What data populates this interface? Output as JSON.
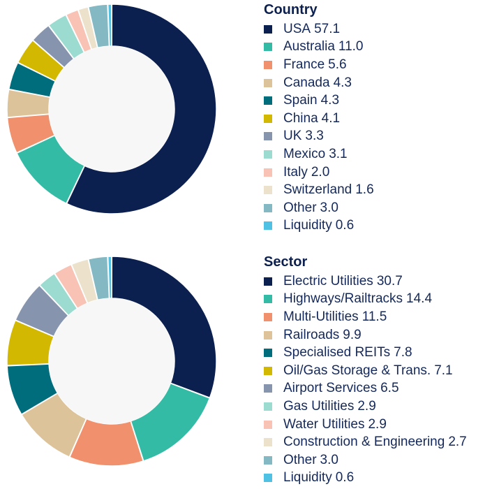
{
  "chart_data": [
    {
      "type": "pie",
      "title": "Country",
      "hole": true,
      "legend_position": "right",
      "slices": [
        {
          "label": "USA",
          "value": 57.1,
          "display": "57.1",
          "color": "#0c2050"
        },
        {
          "label": "Australia",
          "value": 11.0,
          "display": "11.0",
          "color": "#33bba5"
        },
        {
          "label": "France",
          "value": 5.6,
          "display": "5.6",
          "color": "#f0906c"
        },
        {
          "label": "Canada",
          "value": 4.3,
          "display": "4.3",
          "color": "#dcc39a"
        },
        {
          "label": "Spain",
          "value": 4.3,
          "display": "4.3",
          "color": "#006d7d"
        },
        {
          "label": "China",
          "value": 4.1,
          "display": "4.1",
          "color": "#d2b800"
        },
        {
          "label": "UK",
          "value": 3.3,
          "display": "3.3",
          "color": "#8794ad"
        },
        {
          "label": "Mexico",
          "value": 3.1,
          "display": "3.1",
          "color": "#9cdbd0"
        },
        {
          "label": "Italy",
          "value": 2.0,
          "display": "2.0",
          "color": "#f8c3b4"
        },
        {
          "label": "Switzerland",
          "value": 1.6,
          "display": "1.6",
          "color": "#ece1cb"
        },
        {
          "label": "Other",
          "value": 3.0,
          "display": "3.0",
          "color": "#84b9c3"
        },
        {
          "label": "Liquidity",
          "value": 0.6,
          "display": "0.6",
          "color": "#4fc1e2"
        }
      ]
    },
    {
      "type": "pie",
      "title": "Sector",
      "hole": true,
      "legend_position": "right",
      "slices": [
        {
          "label": "Electric Utilities",
          "value": 30.7,
          "display": "30.7",
          "color": "#0c2050"
        },
        {
          "label": "Highways/Railtracks",
          "value": 14.4,
          "display": "14.4",
          "color": "#33bba5"
        },
        {
          "label": "Multi-Utilities",
          "value": 11.5,
          "display": "11.5",
          "color": "#f0906c"
        },
        {
          "label": "Railroads",
          "value": 9.9,
          "display": "9.9",
          "color": "#dcc39a"
        },
        {
          "label": "Specialised REITs",
          "value": 7.8,
          "display": "7.8",
          "color": "#006d7d"
        },
        {
          "label": "Oil/Gas Storage & Trans.",
          "value": 7.1,
          "display": "7.1",
          "color": "#d2b800"
        },
        {
          "label": "Airport Services",
          "value": 6.5,
          "display": "6.5",
          "color": "#8794ad"
        },
        {
          "label": "Gas Utilities",
          "value": 2.9,
          "display": "2.9",
          "color": "#9cdbd0"
        },
        {
          "label": "Water Utilities",
          "value": 2.9,
          "display": "2.9",
          "color": "#f8c3b4"
        },
        {
          "label": "Construction & Engineering",
          "value": 2.7,
          "display": "2.7",
          "color": "#ece1cb"
        },
        {
          "label": "Other",
          "value": 3.0,
          "display": "3.0",
          "color": "#84b9c3"
        },
        {
          "label": "Liquidity",
          "value": 0.6,
          "display": "0.6",
          "color": "#4fc1e2"
        }
      ]
    }
  ]
}
